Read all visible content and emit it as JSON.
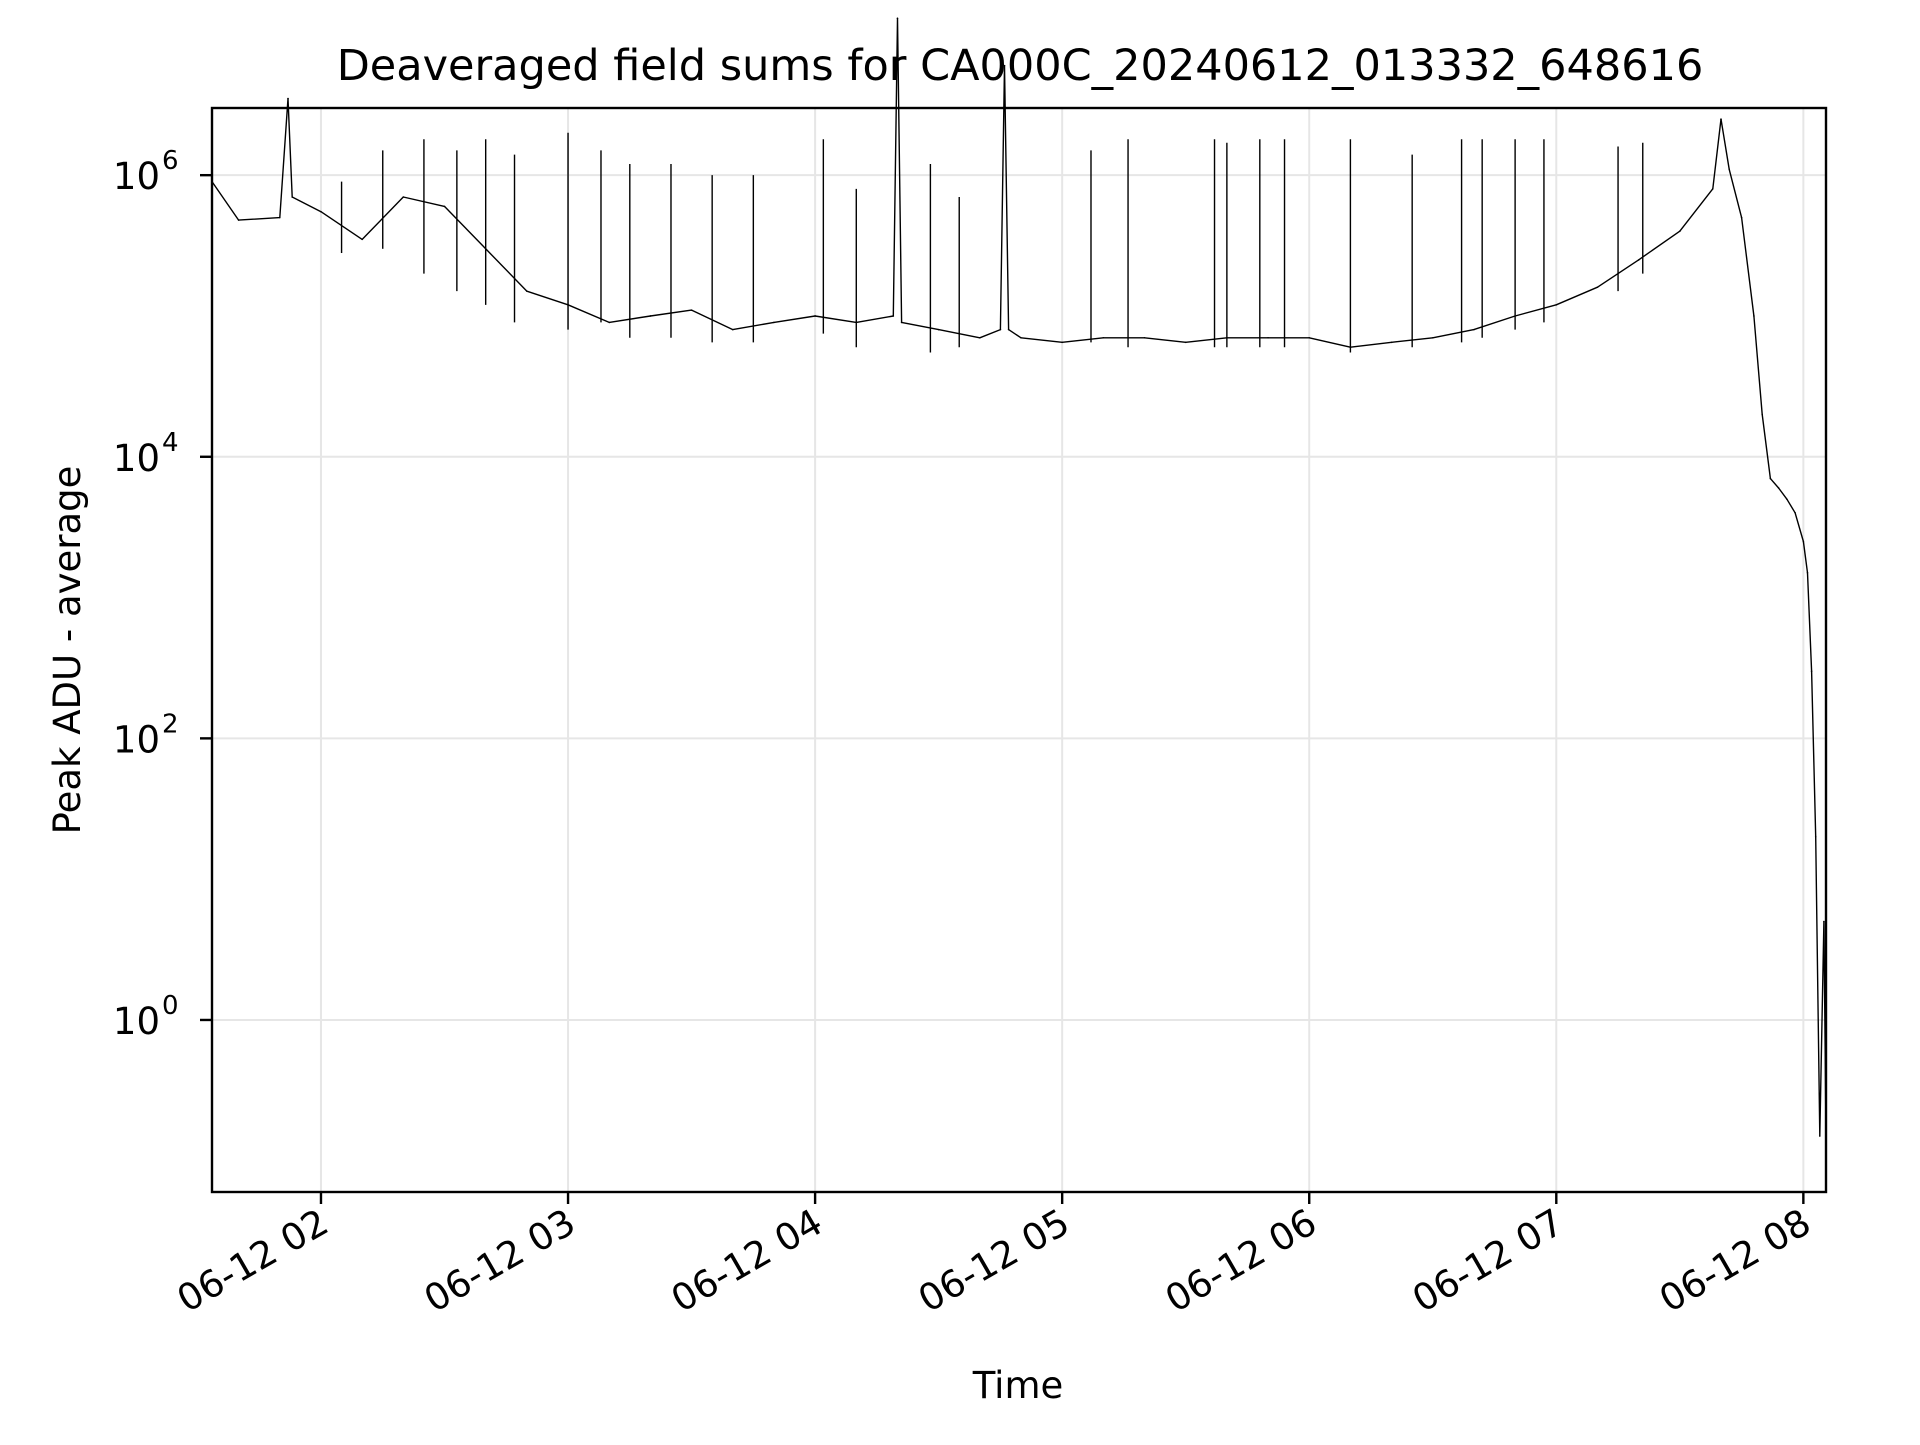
{
  "chart_data": {
    "type": "line",
    "title": "Deaveraged field sums for CA000C_20240612_013332_648616",
    "xlabel": "Time",
    "ylabel": "Peak ADU - average",
    "yscale": "log",
    "grid": true,
    "legend": "none",
    "colors": {
      "line": "#000000",
      "grid": "#e6e6e6",
      "background": "#ffffff"
    },
    "xlim": [
      "2024-06-12 01:33:32",
      "2024-06-12 08:05:30"
    ],
    "ylim": [
      0.06,
      3000000
    ],
    "x_ticks": [
      {
        "value": "2024-06-12 02:00",
        "label": "06-12 02"
      },
      {
        "value": "2024-06-12 03:00",
        "label": "06-12 03"
      },
      {
        "value": "2024-06-12 04:00",
        "label": "06-12 04"
      },
      {
        "value": "2024-06-12 05:00",
        "label": "06-12 05"
      },
      {
        "value": "2024-06-12 06:00",
        "label": "06-12 06"
      },
      {
        "value": "2024-06-12 07:00",
        "label": "06-12 07"
      },
      {
        "value": "2024-06-12 08:00",
        "label": "06-12 08"
      }
    ],
    "y_ticks": [
      {
        "value": 1,
        "base": "10",
        "exp": "0"
      },
      {
        "value": 100,
        "base": "10",
        "exp": "2"
      },
      {
        "value": 10000,
        "base": "10",
        "exp": "4"
      },
      {
        "value": 1000000,
        "base": "10",
        "exp": "6"
      }
    ],
    "series": [
      {
        "x": [
          "2024-06-12 01:33:32",
          "2024-06-12 01:40",
          "2024-06-12 01:50",
          "2024-06-12 01:52",
          "2024-06-12 01:53",
          "2024-06-12 02:00",
          "2024-06-12 02:10",
          "2024-06-12 02:20",
          "2024-06-12 02:30",
          "2024-06-12 02:40",
          "2024-06-12 02:50",
          "2024-06-12 03:00",
          "2024-06-12 03:10",
          "2024-06-12 03:20",
          "2024-06-12 03:30",
          "2024-06-12 03:40",
          "2024-06-12 03:50",
          "2024-06-12 04:00",
          "2024-06-12 04:10",
          "2024-06-12 04:19",
          "2024-06-12 04:20",
          "2024-06-12 04:21",
          "2024-06-12 04:30",
          "2024-06-12 04:40",
          "2024-06-12 04:45",
          "2024-06-12 04:46",
          "2024-06-12 04:47",
          "2024-06-12 04:50",
          "2024-06-12 05:00",
          "2024-06-12 05:10",
          "2024-06-12 05:20",
          "2024-06-12 05:30",
          "2024-06-12 05:40",
          "2024-06-12 05:50",
          "2024-06-12 06:00",
          "2024-06-12 06:10",
          "2024-06-12 06:20",
          "2024-06-12 06:30",
          "2024-06-12 06:40",
          "2024-06-12 06:50",
          "2024-06-12 07:00",
          "2024-06-12 07:10",
          "2024-06-12 07:20",
          "2024-06-12 07:30",
          "2024-06-12 07:38",
          "2024-06-12 07:40",
          "2024-06-12 07:42",
          "2024-06-12 07:45",
          "2024-06-12 07:48",
          "2024-06-12 07:50",
          "2024-06-12 07:52",
          "2024-06-12 07:54",
          "2024-06-12 07:56",
          "2024-06-12 07:58",
          "2024-06-12 08:00",
          "2024-06-12 08:01",
          "2024-06-12 08:02",
          "2024-06-12 08:03",
          "2024-06-12 08:04",
          "2024-06-12 08:05",
          "2024-06-12 08:05:30"
        ],
        "y": [
          900000,
          480000,
          500000,
          3500000,
          700000,
          550000,
          350000,
          700000,
          600000,
          300000,
          150000,
          120000,
          90000,
          100000,
          110000,
          80000,
          90000,
          100000,
          90000,
          100000,
          13000000,
          90000,
          80000,
          70000,
          80000,
          6000000,
          80000,
          70000,
          65000,
          70000,
          70000,
          65000,
          70000,
          70000,
          70000,
          60000,
          65000,
          70000,
          80000,
          100000,
          120000,
          160000,
          250000,
          400000,
          800000,
          2500000,
          1100000,
          500000,
          100000,
          20000,
          7000,
          6000,
          5000,
          4000,
          2500,
          1500,
          300,
          20,
          0.15,
          5,
          0.15
        ]
      }
    ],
    "spikes": {
      "x": [
        "2024-06-12 02:05",
        "2024-06-12 02:15",
        "2024-06-12 02:25",
        "2024-06-12 02:33",
        "2024-06-12 02:40",
        "2024-06-12 02:47",
        "2024-06-12 03:00",
        "2024-06-12 03:08",
        "2024-06-12 03:15",
        "2024-06-12 03:25",
        "2024-06-12 03:35",
        "2024-06-12 03:45",
        "2024-06-12 04:02",
        "2024-06-12 04:10",
        "2024-06-12 04:28",
        "2024-06-12 04:35",
        "2024-06-12 05:07",
        "2024-06-12 05:16",
        "2024-06-12 05:37",
        "2024-06-12 05:40",
        "2024-06-12 05:48",
        "2024-06-12 05:54",
        "2024-06-12 06:10",
        "2024-06-12 06:25",
        "2024-06-12 06:37",
        "2024-06-12 06:42",
        "2024-06-12 06:50",
        "2024-06-12 06:57",
        "2024-06-12 07:15",
        "2024-06-12 07:21"
      ],
      "y": [
        900000,
        1500000,
        1800000,
        1500000,
        1800000,
        1400000,
        2000000,
        1500000,
        1200000,
        1200000,
        1000000,
        1000000,
        1800000,
        800000,
        1200000,
        700000,
        1500000,
        1800000,
        1800000,
        1700000,
        1800000,
        1800000,
        1800000,
        1400000,
        1800000,
        1800000,
        1800000,
        1800000,
        1600000,
        1700000
      ],
      "base": [
        280000,
        300000,
        200000,
        150000,
        120000,
        90000,
        80000,
        90000,
        70000,
        70000,
        65000,
        65000,
        75000,
        60000,
        55000,
        60000,
        65000,
        60000,
        60000,
        60000,
        60000,
        60000,
        55000,
        60000,
        65000,
        70000,
        80000,
        90000,
        150000,
        200000
      ]
    }
  }
}
